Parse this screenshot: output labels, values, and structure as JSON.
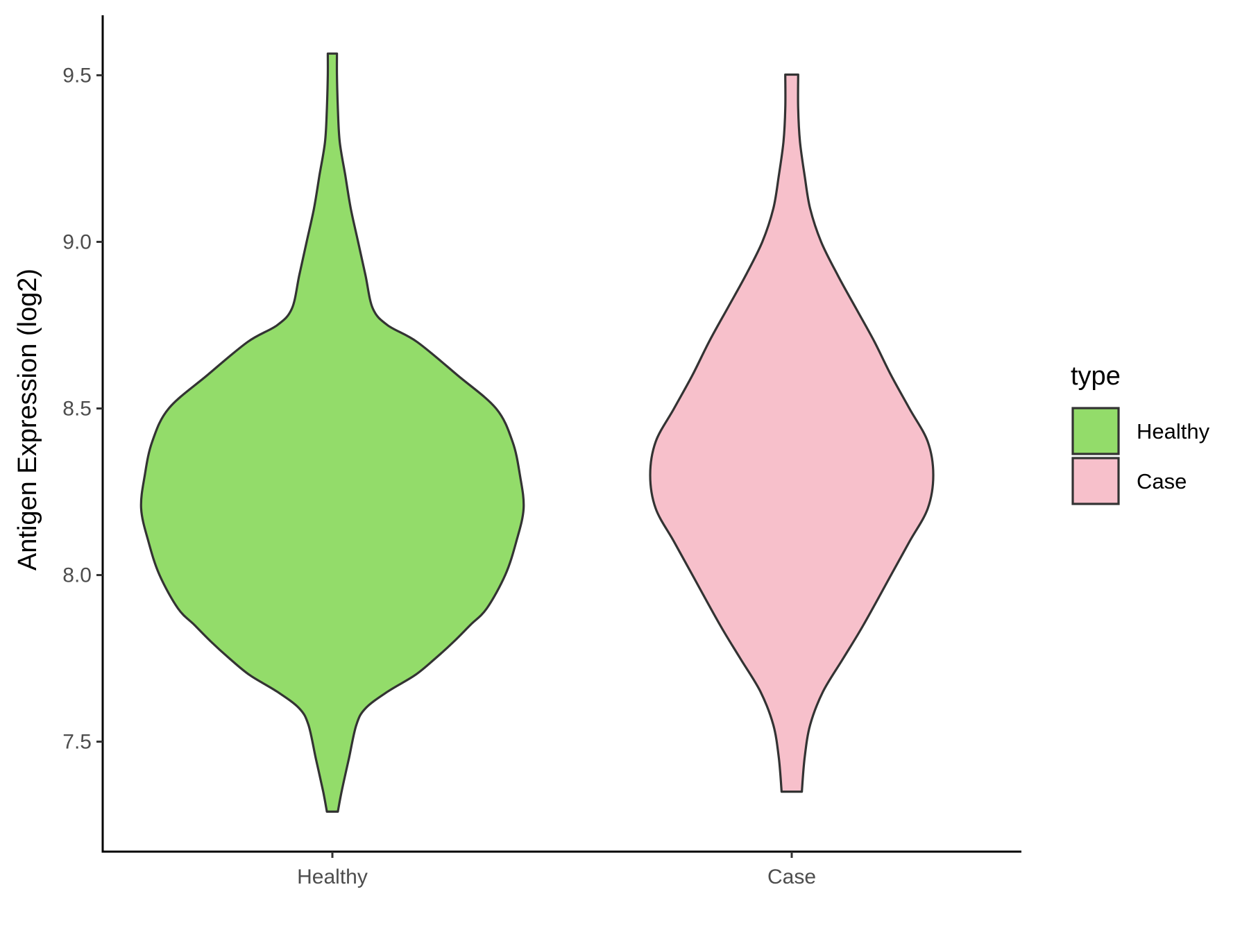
{
  "chart_data": {
    "type": "violin",
    "title": "",
    "xlabel": "",
    "ylabel": "Antigen Expression (log2)",
    "ylim": [
      7.17,
      9.68
    ],
    "yticks": [
      "7.5",
      "8.0",
      "8.5",
      "9.0",
      "9.5"
    ],
    "categories": [
      "Healthy",
      "Case"
    ],
    "grid": false,
    "legend": {
      "title": "type",
      "position": "right",
      "entries": [
        {
          "label": "Healthy",
          "color": "#93dc6a"
        },
        {
          "label": "Case",
          "color": "#f7c0cb"
        }
      ]
    },
    "series": [
      {
        "name": "Healthy",
        "color": "#93dc6a",
        "profile": [
          [
            7.29,
            0.03
          ],
          [
            7.35,
            0.05
          ],
          [
            7.45,
            0.09
          ],
          [
            7.55,
            0.13
          ],
          [
            7.6,
            0.18
          ],
          [
            7.65,
            0.3
          ],
          [
            7.7,
            0.45
          ],
          [
            7.75,
            0.56
          ],
          [
            7.8,
            0.66
          ],
          [
            7.85,
            0.75
          ],
          [
            7.9,
            0.84
          ],
          [
            8.0,
            0.94
          ],
          [
            8.1,
            1.0
          ],
          [
            8.2,
            1.04
          ],
          [
            8.3,
            1.02
          ],
          [
            8.4,
            0.98
          ],
          [
            8.5,
            0.89
          ],
          [
            8.6,
            0.68
          ],
          [
            8.7,
            0.46
          ],
          [
            8.75,
            0.3
          ],
          [
            8.8,
            0.22
          ],
          [
            8.9,
            0.18
          ],
          [
            9.0,
            0.14
          ],
          [
            9.1,
            0.1
          ],
          [
            9.2,
            0.07
          ],
          [
            9.3,
            0.04
          ],
          [
            9.4,
            0.03
          ],
          [
            9.5,
            0.025
          ],
          [
            9.565,
            0.025
          ]
        ]
      },
      {
        "name": "Case",
        "color": "#f7c0cb",
        "profile": [
          [
            7.35,
            0.055
          ],
          [
            7.45,
            0.07
          ],
          [
            7.55,
            0.1
          ],
          [
            7.65,
            0.17
          ],
          [
            7.75,
            0.28
          ],
          [
            7.85,
            0.39
          ],
          [
            8.0,
            0.54
          ],
          [
            8.1,
            0.64
          ],
          [
            8.2,
            0.74
          ],
          [
            8.3,
            0.77
          ],
          [
            8.4,
            0.74
          ],
          [
            8.5,
            0.64
          ],
          [
            8.6,
            0.54
          ],
          [
            8.7,
            0.45
          ],
          [
            8.8,
            0.35
          ],
          [
            8.9,
            0.25
          ],
          [
            9.0,
            0.16
          ],
          [
            9.1,
            0.1
          ],
          [
            9.2,
            0.07
          ],
          [
            9.3,
            0.045
          ],
          [
            9.4,
            0.035
          ],
          [
            9.502,
            0.035
          ]
        ]
      }
    ]
  }
}
